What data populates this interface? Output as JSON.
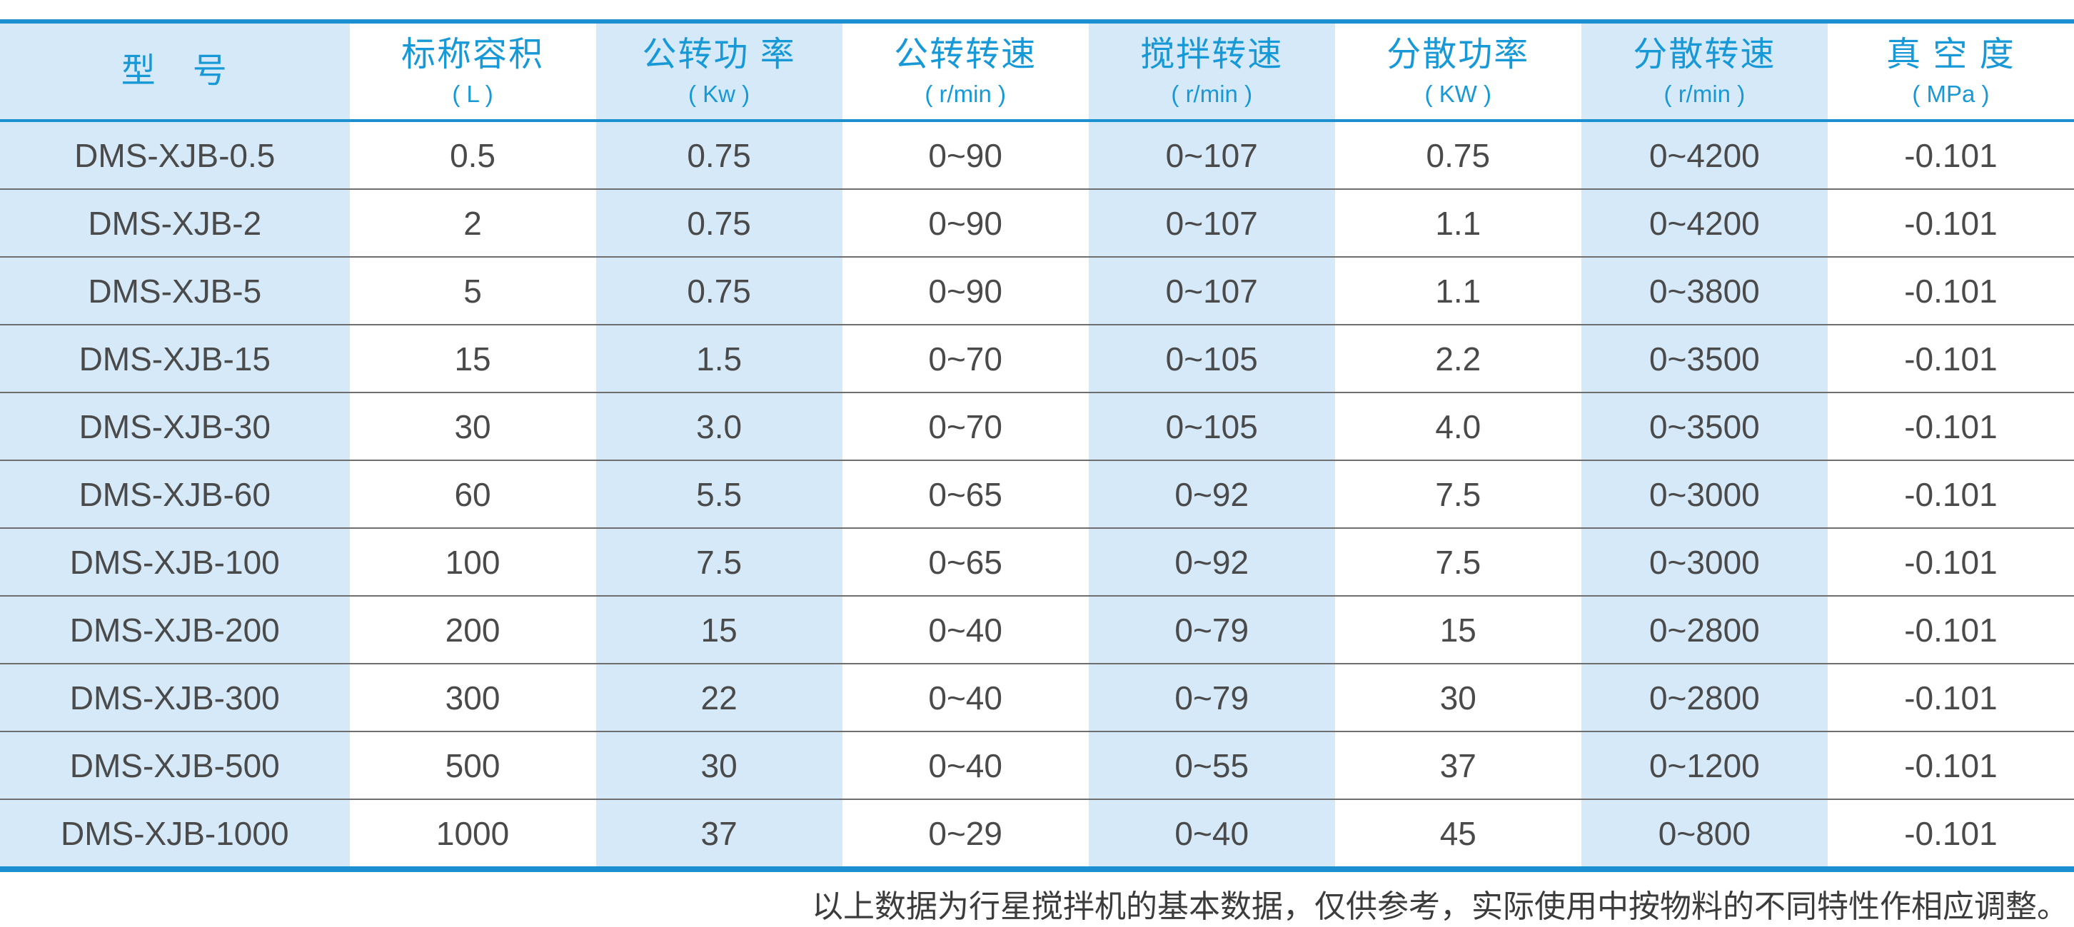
{
  "colors": {
    "accent_blue_rule": "#1b8fd0",
    "header_text_blue": "#1899d7",
    "column_stripe_blue": "#d5e9f8",
    "row_separator_gray": "#6e6e6e",
    "body_text_gray": "#4a4a4a"
  },
  "table": {
    "columns": [
      {
        "label": "型　号",
        "unit": ""
      },
      {
        "label": "标称容积",
        "unit": "( L )"
      },
      {
        "label": "公转功 率",
        "unit": "( Kw )"
      },
      {
        "label": "公转转速",
        "unit": "( r/min )"
      },
      {
        "label": "搅拌转速",
        "unit": "( r/min )"
      },
      {
        "label": "分散功率",
        "unit": "( KW )"
      },
      {
        "label": "分散转速",
        "unit": "( r/min )"
      },
      {
        "label": "真 空 度",
        "unit": "( MPa )"
      }
    ],
    "rows": [
      [
        "DMS-XJB-0.5",
        "0.5",
        "0.75",
        "0~90",
        "0~107",
        "0.75",
        "0~4200",
        "-0.101"
      ],
      [
        "DMS-XJB-2",
        "2",
        "0.75",
        "0~90",
        "0~107",
        "1.1",
        "0~4200",
        "-0.101"
      ],
      [
        "DMS-XJB-5",
        "5",
        "0.75",
        "0~90",
        "0~107",
        "1.1",
        "0~3800",
        "-0.101"
      ],
      [
        "DMS-XJB-15",
        "15",
        "1.5",
        "0~70",
        "0~105",
        "2.2",
        "0~3500",
        "-0.101"
      ],
      [
        "DMS-XJB-30",
        "30",
        "3.0",
        "0~70",
        "0~105",
        "4.0",
        "0~3500",
        "-0.101"
      ],
      [
        "DMS-XJB-60",
        "60",
        "5.5",
        "0~65",
        "0~92",
        "7.5",
        "0~3000",
        "-0.101"
      ],
      [
        "DMS-XJB-100",
        "100",
        "7.5",
        "0~65",
        "0~92",
        "7.5",
        "0~3000",
        "-0.101"
      ],
      [
        "DMS-XJB-200",
        "200",
        "15",
        "0~40",
        "0~79",
        "15",
        "0~2800",
        "-0.101"
      ],
      [
        "DMS-XJB-300",
        "300",
        "22",
        "0~40",
        "0~79",
        "30",
        "0~2800",
        "-0.101"
      ],
      [
        "DMS-XJB-500",
        "500",
        "30",
        "0~40",
        "0~55",
        "37",
        "0~1200",
        "-0.101"
      ],
      [
        "DMS-XJB-1000",
        "1000",
        "37",
        "0~29",
        "0~40",
        "45",
        "0~800",
        "-0.101"
      ]
    ]
  },
  "footnote": "以上数据为行星搅拌机的基本数据，仅供参考，实际使用中按物料的不同特性作相应调整。"
}
